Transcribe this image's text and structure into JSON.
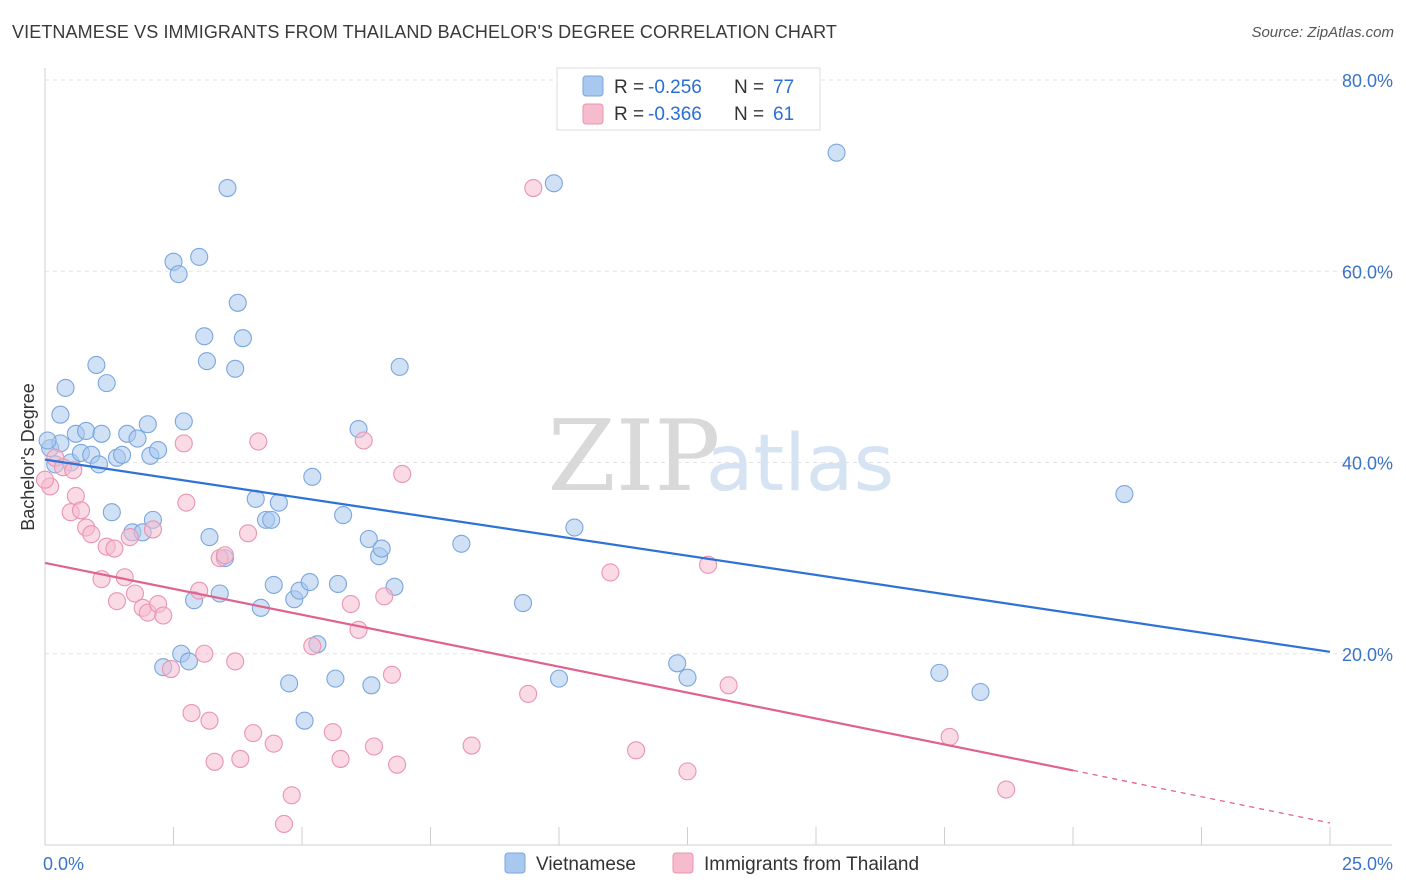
{
  "title": "VIETNAMESE VS IMMIGRANTS FROM THAILAND BACHELOR'S DEGREE CORRELATION CHART",
  "source": "Source: ZipAtlas.com",
  "watermark": {
    "zip": "ZIP",
    "atlas": "atlas"
  },
  "colors": {
    "blue_fill": "#a9c8ef",
    "blue_stroke": "#7aa6de",
    "blue_line": "#2f72d6",
    "pink_fill": "#f6bccd",
    "pink_stroke": "#ea94b0",
    "pink_line": "#e0628e",
    "tick_text": "#3a74c8",
    "grid": "#e3e3e3"
  },
  "legend": {
    "rows": [
      {
        "r_label": "R = ",
        "r_value": "-0.256",
        "n_label": "N = ",
        "n_value": "77",
        "series": "blue"
      },
      {
        "r_label": "R = ",
        "r_value": "-0.366",
        "n_label": "N = ",
        "n_value": "61",
        "series": "pink"
      }
    ]
  },
  "chart_data": {
    "type": "scatter",
    "title": "VIETNAMESE VS IMMIGRANTS FROM THAILAND BACHELOR'S DEGREE CORRELATION CHART",
    "xlabel": "",
    "ylabel": "Bachelor's Degree",
    "xlim": [
      0,
      25
    ],
    "ylim": [
      0,
      80
    ],
    "x_tick_labels": [
      "0.0%",
      "25.0%"
    ],
    "y_ticks": [
      20,
      40,
      60,
      80
    ],
    "y_tick_labels": [
      "20.0%",
      "40.0%",
      "60.0%",
      "80.0%"
    ],
    "grid": true,
    "series": [
      {
        "name": "Vietnamese",
        "color": "blue",
        "trend": {
          "x0": 0,
          "y0": 40.3,
          "x1": 25,
          "y1": 20.2
        },
        "points": [
          [
            0.1,
            41.5
          ],
          [
            0.2,
            39.8
          ],
          [
            0.3,
            42.0
          ],
          [
            0.3,
            45.0
          ],
          [
            0.4,
            47.8
          ],
          [
            0.5,
            40.0
          ],
          [
            0.6,
            43.0
          ],
          [
            0.7,
            41.0
          ],
          [
            0.8,
            43.3
          ],
          [
            0.9,
            40.8
          ],
          [
            1.0,
            50.2
          ],
          [
            1.05,
            39.8
          ],
          [
            1.1,
            43.0
          ],
          [
            1.2,
            48.3
          ],
          [
            1.3,
            34.8
          ],
          [
            1.4,
            40.5
          ],
          [
            1.5,
            40.8
          ],
          [
            1.6,
            43.0
          ],
          [
            1.7,
            32.7
          ],
          [
            1.8,
            42.5
          ],
          [
            1.9,
            32.7
          ],
          [
            2.0,
            44.0
          ],
          [
            2.05,
            40.7
          ],
          [
            2.1,
            34.0
          ],
          [
            2.2,
            41.3
          ],
          [
            2.3,
            18.6
          ],
          [
            2.5,
            61.0
          ],
          [
            2.6,
            59.7
          ],
          [
            2.65,
            20.0
          ],
          [
            2.7,
            44.3
          ],
          [
            2.8,
            19.2
          ],
          [
            2.9,
            25.6
          ],
          [
            3.0,
            61.5
          ],
          [
            3.1,
            53.2
          ],
          [
            3.15,
            50.6
          ],
          [
            3.2,
            32.2
          ],
          [
            3.4,
            26.3
          ],
          [
            3.5,
            30.0
          ],
          [
            3.55,
            68.7
          ],
          [
            3.7,
            49.8
          ],
          [
            3.75,
            56.7
          ],
          [
            3.85,
            53.0
          ],
          [
            4.1,
            36.2
          ],
          [
            4.2,
            24.8
          ],
          [
            4.3,
            34.0
          ],
          [
            4.4,
            34.0
          ],
          [
            4.45,
            27.2
          ],
          [
            4.55,
            35.8
          ],
          [
            4.75,
            16.9
          ],
          [
            4.85,
            25.7
          ],
          [
            4.95,
            26.6
          ],
          [
            5.05,
            13.0
          ],
          [
            5.15,
            27.5
          ],
          [
            5.2,
            38.5
          ],
          [
            5.3,
            21.0
          ],
          [
            5.65,
            17.4
          ],
          [
            5.7,
            27.3
          ],
          [
            5.8,
            34.5
          ],
          [
            6.1,
            43.5
          ],
          [
            6.3,
            32.0
          ],
          [
            6.35,
            16.7
          ],
          [
            6.5,
            30.2
          ],
          [
            6.55,
            31.0
          ],
          [
            6.8,
            27.0
          ],
          [
            6.9,
            50.0
          ],
          [
            8.1,
            31.5
          ],
          [
            9.3,
            25.3
          ],
          [
            9.9,
            69.2
          ],
          [
            10.0,
            17.4
          ],
          [
            10.3,
            33.2
          ],
          [
            12.3,
            19.0
          ],
          [
            12.5,
            17.5
          ],
          [
            15.4,
            72.4
          ],
          [
            17.4,
            18.0
          ],
          [
            18.2,
            16.0
          ],
          [
            21.0,
            36.7
          ],
          [
            0.05,
            42.3
          ]
        ]
      },
      {
        "name": "Immigrants from Thailand",
        "color": "pink",
        "trend": {
          "x0": 0,
          "y0": 29.5,
          "x1": 20,
          "y1": 7.8,
          "x_dash_end": 25,
          "y_dash_end": 2.3
        },
        "points": [
          [
            0.1,
            37.5
          ],
          [
            0.2,
            40.5
          ],
          [
            0.35,
            39.5
          ],
          [
            0.5,
            34.8
          ],
          [
            0.55,
            39.2
          ],
          [
            0.6,
            36.5
          ],
          [
            0.7,
            35.0
          ],
          [
            0.8,
            33.2
          ],
          [
            0.9,
            32.5
          ],
          [
            1.1,
            27.8
          ],
          [
            1.2,
            31.2
          ],
          [
            1.35,
            31.0
          ],
          [
            1.4,
            25.5
          ],
          [
            1.55,
            28.0
          ],
          [
            1.65,
            32.2
          ],
          [
            1.75,
            26.3
          ],
          [
            1.9,
            24.8
          ],
          [
            2.0,
            24.3
          ],
          [
            2.1,
            33.0
          ],
          [
            2.2,
            25.2
          ],
          [
            2.3,
            24.0
          ],
          [
            2.45,
            18.4
          ],
          [
            2.7,
            42.0
          ],
          [
            2.75,
            35.8
          ],
          [
            2.85,
            13.8
          ],
          [
            3.0,
            26.6
          ],
          [
            3.1,
            20.0
          ],
          [
            3.2,
            13.0
          ],
          [
            3.3,
            8.7
          ],
          [
            3.4,
            30.0
          ],
          [
            3.5,
            30.3
          ],
          [
            3.7,
            19.2
          ],
          [
            3.8,
            9.0
          ],
          [
            3.95,
            32.6
          ],
          [
            4.05,
            11.7
          ],
          [
            4.15,
            42.2
          ],
          [
            4.45,
            10.6
          ],
          [
            4.65,
            2.2
          ],
          [
            4.8,
            5.2
          ],
          [
            5.2,
            20.8
          ],
          [
            5.6,
            11.8
          ],
          [
            5.75,
            9.0
          ],
          [
            5.95,
            25.2
          ],
          [
            6.1,
            22.5
          ],
          [
            6.2,
            42.3
          ],
          [
            6.4,
            10.3
          ],
          [
            6.6,
            26.0
          ],
          [
            6.75,
            17.8
          ],
          [
            6.85,
            8.4
          ],
          [
            6.95,
            38.8
          ],
          [
            8.3,
            10.4
          ],
          [
            9.4,
            15.8
          ],
          [
            9.5,
            68.7
          ],
          [
            11.0,
            28.5
          ],
          [
            11.5,
            9.9
          ],
          [
            12.5,
            7.7
          ],
          [
            12.9,
            29.3
          ],
          [
            13.3,
            16.7
          ],
          [
            17.6,
            11.3
          ],
          [
            18.7,
            5.8
          ],
          [
            0.0,
            38.2
          ]
        ]
      }
    ]
  },
  "bottom_legend": [
    {
      "label": "Vietnamese",
      "series": "blue"
    },
    {
      "label": "Immigrants from Thailand",
      "series": "pink"
    }
  ]
}
